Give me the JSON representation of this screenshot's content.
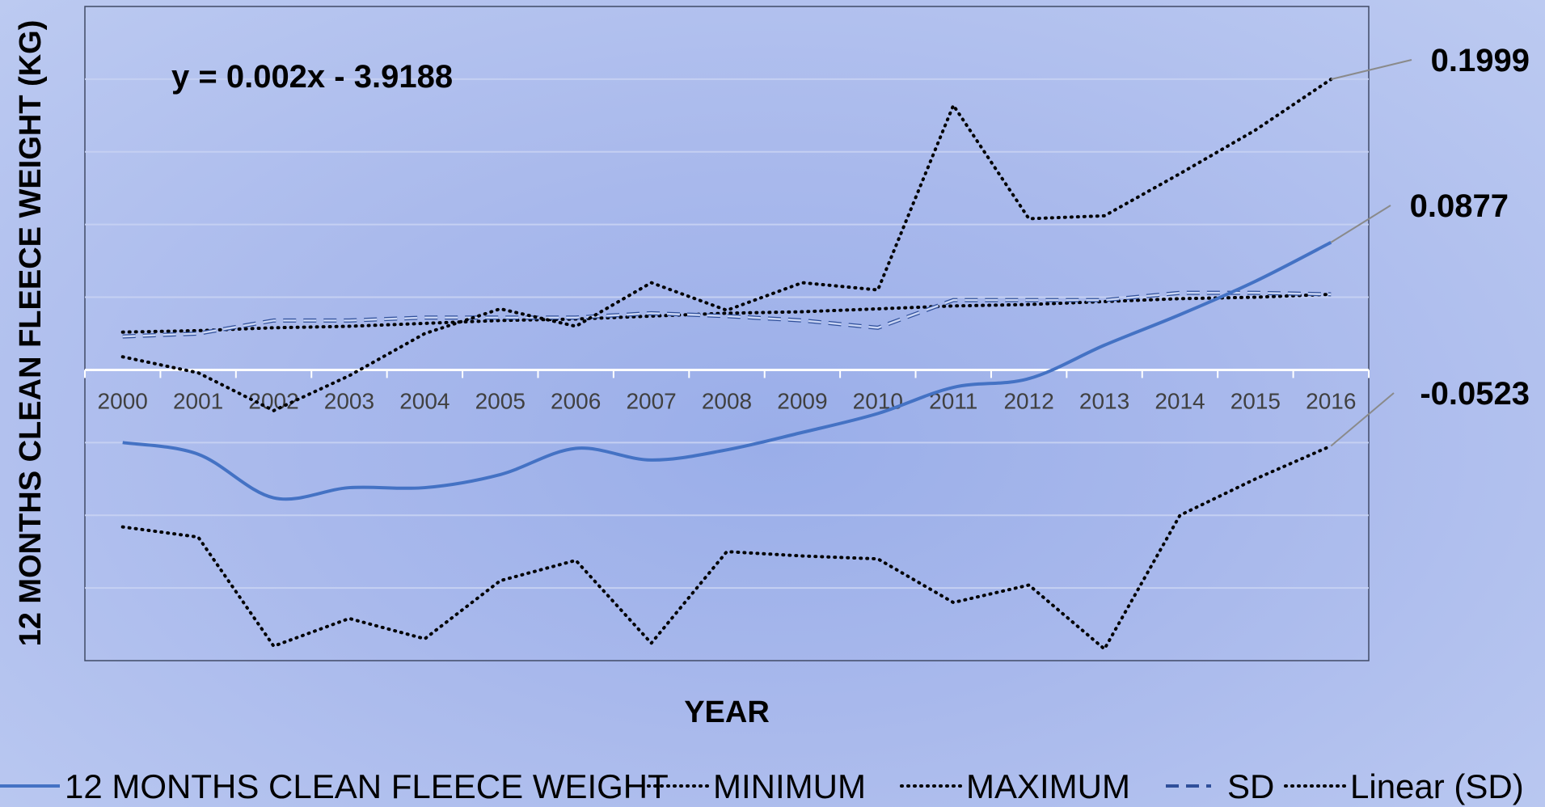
{
  "chart_data": {
    "type": "line",
    "xlabel": "YEAR",
    "ylabel": "12 MONTHS CLEAN FLEECE WEIGHT (KG)",
    "trendline_equation": "y = 0.002x - 3.9188",
    "categories": [
      "2000",
      "2001",
      "2002",
      "2003",
      "2004",
      "2005",
      "2006",
      "2007",
      "2008",
      "2009",
      "2010",
      "2011",
      "2012",
      "2013",
      "2014",
      "2015",
      "2016"
    ],
    "ylim": [
      -0.2,
      0.25
    ],
    "grid": true,
    "legend_position": "bottom",
    "series": [
      {
        "name": "12 MONTHS CLEAN FLEECE WEIGHT",
        "style": "solid",
        "color": "#4472c4",
        "values": [
          -0.05,
          -0.058,
          -0.088,
          -0.081,
          -0.081,
          -0.072,
          -0.054,
          -0.062,
          -0.055,
          -0.043,
          -0.03,
          -0.012,
          -0.006,
          0.017,
          0.038,
          0.061,
          0.0877
        ]
      },
      {
        "name": "MINIMUM",
        "style": "dotted",
        "color": "#000000",
        "values": [
          -0.108,
          -0.115,
          -0.19,
          -0.171,
          -0.185,
          -0.145,
          -0.131,
          -0.188,
          -0.125,
          -0.128,
          -0.13,
          -0.16,
          -0.148,
          -0.192,
          -0.1,
          -0.075,
          -0.0523
        ]
      },
      {
        "name": "MAXIMUM",
        "style": "dotted",
        "color": "#000000",
        "values": [
          0.009,
          -0.002,
          -0.028,
          -0.004,
          0.025,
          0.042,
          0.03,
          0.06,
          0.041,
          0.06,
          0.055,
          0.182,
          0.104,
          0.106,
          0.135,
          0.165,
          0.1999
        ]
      },
      {
        "name": "SD",
        "style": "dashed",
        "color": "#4472c4",
        "values": [
          0.023,
          0.025,
          0.034,
          0.034,
          0.036,
          0.036,
          0.036,
          0.039,
          0.037,
          0.034,
          0.029,
          0.048,
          0.048,
          0.048,
          0.053,
          0.053,
          0.052
        ]
      },
      {
        "name": "Linear (SD)",
        "style": "dotted",
        "color": "#000000",
        "values": [
          0.026,
          0.027,
          0.029,
          0.03,
          0.032,
          0.034,
          0.035,
          0.037,
          0.039,
          0.04,
          0.042,
          0.044,
          0.045,
          0.047,
          0.049,
          0.05,
          0.052
        ]
      }
    ],
    "end_labels": [
      {
        "series": "MAXIMUM",
        "text": "0.1999"
      },
      {
        "series": "12 MONTHS CLEAN FLEECE WEIGHT",
        "text": "0.0877"
      },
      {
        "series": "MINIMUM",
        "text": "-0.0523"
      }
    ]
  }
}
